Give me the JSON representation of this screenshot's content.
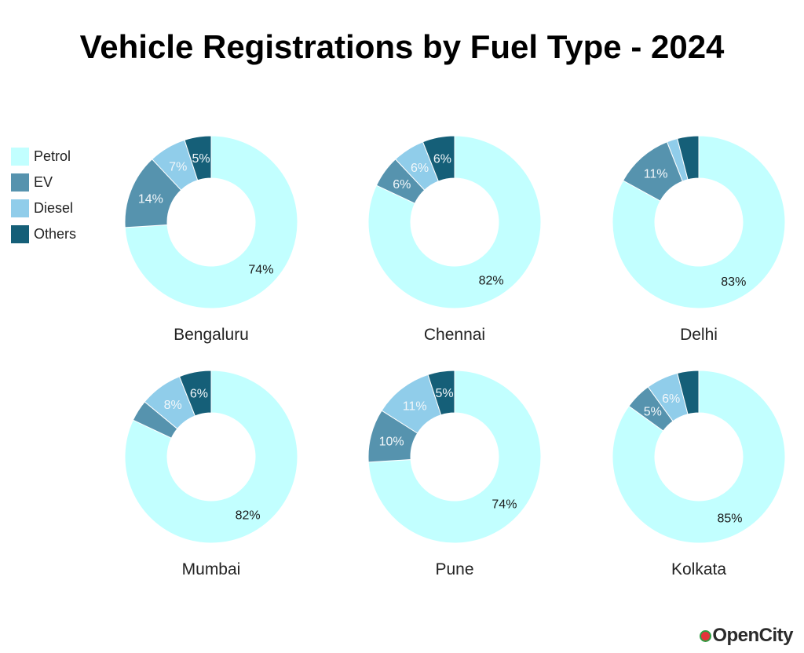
{
  "title": "Vehicle Registrations by Fuel Type - 2024",
  "legend": [
    {
      "label": "Petrol",
      "color": "#c2ffff"
    },
    {
      "label": "EV",
      "color": "#5693ae"
    },
    {
      "label": "Diesel",
      "color": "#90cdea"
    },
    {
      "label": "Others",
      "color": "#155f78"
    }
  ],
  "logo_text": "OpenCity",
  "chart_data": [
    {
      "type": "pie",
      "city": "Bengaluru",
      "slices": [
        {
          "name": "Petrol",
          "value": 74,
          "label": "74%"
        },
        {
          "name": "EV",
          "value": 14,
          "label": "14%"
        },
        {
          "name": "Diesel",
          "value": 7,
          "label": "7%"
        },
        {
          "name": "Others",
          "value": 5,
          "label": "5%"
        }
      ]
    },
    {
      "type": "pie",
      "city": "Chennai",
      "slices": [
        {
          "name": "Petrol",
          "value": 82,
          "label": "82%"
        },
        {
          "name": "EV",
          "value": 6,
          "label": "6%"
        },
        {
          "name": "Diesel",
          "value": 6,
          "label": "6%"
        },
        {
          "name": "Others",
          "value": 6,
          "label": "6%"
        }
      ]
    },
    {
      "type": "pie",
      "city": "Delhi",
      "slices": [
        {
          "name": "Petrol",
          "value": 83,
          "label": "83%"
        },
        {
          "name": "EV",
          "value": 11,
          "label": "11%"
        },
        {
          "name": "Diesel",
          "value": 2,
          "label": ""
        },
        {
          "name": "Others",
          "value": 4,
          "label": ""
        }
      ]
    },
    {
      "type": "pie",
      "city": "Mumbai",
      "slices": [
        {
          "name": "Petrol",
          "value": 82,
          "label": "82%"
        },
        {
          "name": "EV",
          "value": 4,
          "label": ""
        },
        {
          "name": "Diesel",
          "value": 8,
          "label": "8%"
        },
        {
          "name": "Others",
          "value": 6,
          "label": "6%"
        }
      ]
    },
    {
      "type": "pie",
      "city": "Pune",
      "slices": [
        {
          "name": "Petrol",
          "value": 74,
          "label": "74%"
        },
        {
          "name": "EV",
          "value": 10,
          "label": "10%"
        },
        {
          "name": "Diesel",
          "value": 11,
          "label": "11%"
        },
        {
          "name": "Others",
          "value": 5,
          "label": "5%"
        }
      ]
    },
    {
      "type": "pie",
      "city": "Kolkata",
      "slices": [
        {
          "name": "Petrol",
          "value": 85,
          "label": "85%"
        },
        {
          "name": "EV",
          "value": 5,
          "label": "5%"
        },
        {
          "name": "Diesel",
          "value": 6,
          "label": "6%"
        },
        {
          "name": "Others",
          "value": 4,
          "label": ""
        }
      ]
    }
  ]
}
